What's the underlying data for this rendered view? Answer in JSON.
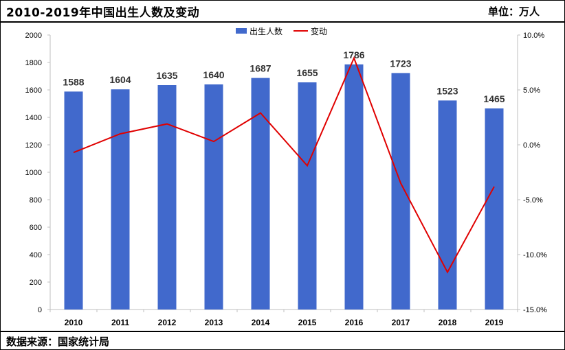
{
  "header": {
    "title": "2010-2019年中国出生人数及变动",
    "unit": "单位：万人"
  },
  "footer": {
    "source": "数据来源：国家统计局"
  },
  "colors": {
    "bar": "#4169CC",
    "line": "#E00000",
    "axis": "#BFBFBF"
  },
  "chart_data": {
    "type": "bar",
    "categories": [
      "2010",
      "2011",
      "2012",
      "2013",
      "2014",
      "2015",
      "2016",
      "2017",
      "2018",
      "2019"
    ],
    "series": [
      {
        "name": "出生人数",
        "type": "bar",
        "axis": "left",
        "values": [
          1588,
          1604,
          1635,
          1640,
          1687,
          1655,
          1786,
          1723,
          1523,
          1465
        ],
        "data_labels": [
          "1588",
          "1604",
          "1635",
          "1640",
          "1687",
          "1655",
          "1786",
          "1723",
          "1523",
          "1465"
        ]
      },
      {
        "name": "变动",
        "type": "line",
        "axis": "right",
        "values": [
          -0.7,
          1.0,
          1.9,
          0.3,
          2.9,
          -1.9,
          7.9,
          -3.5,
          -11.6,
          -3.8
        ]
      }
    ],
    "y_left": {
      "ylim": [
        0,
        2000
      ],
      "ticks": [
        0,
        200,
        400,
        600,
        800,
        1000,
        1200,
        1400,
        1600,
        1800,
        2000
      ],
      "tick_labels": [
        "0",
        "200",
        "400",
        "600",
        "800",
        "1000",
        "1200",
        "1400",
        "1600",
        "1800",
        "2000"
      ]
    },
    "y_right": {
      "ylim": [
        -15,
        10
      ],
      "ticks": [
        -15,
        -10,
        -5,
        0,
        5,
        10
      ],
      "tick_labels": [
        "-15.0%",
        "-10.0%",
        "-5.0%",
        "0.0%",
        "5.0%",
        "10.0%"
      ]
    },
    "grid": false,
    "legend": {
      "position": "top-center",
      "entries": [
        "出生人数",
        "变动"
      ]
    }
  }
}
